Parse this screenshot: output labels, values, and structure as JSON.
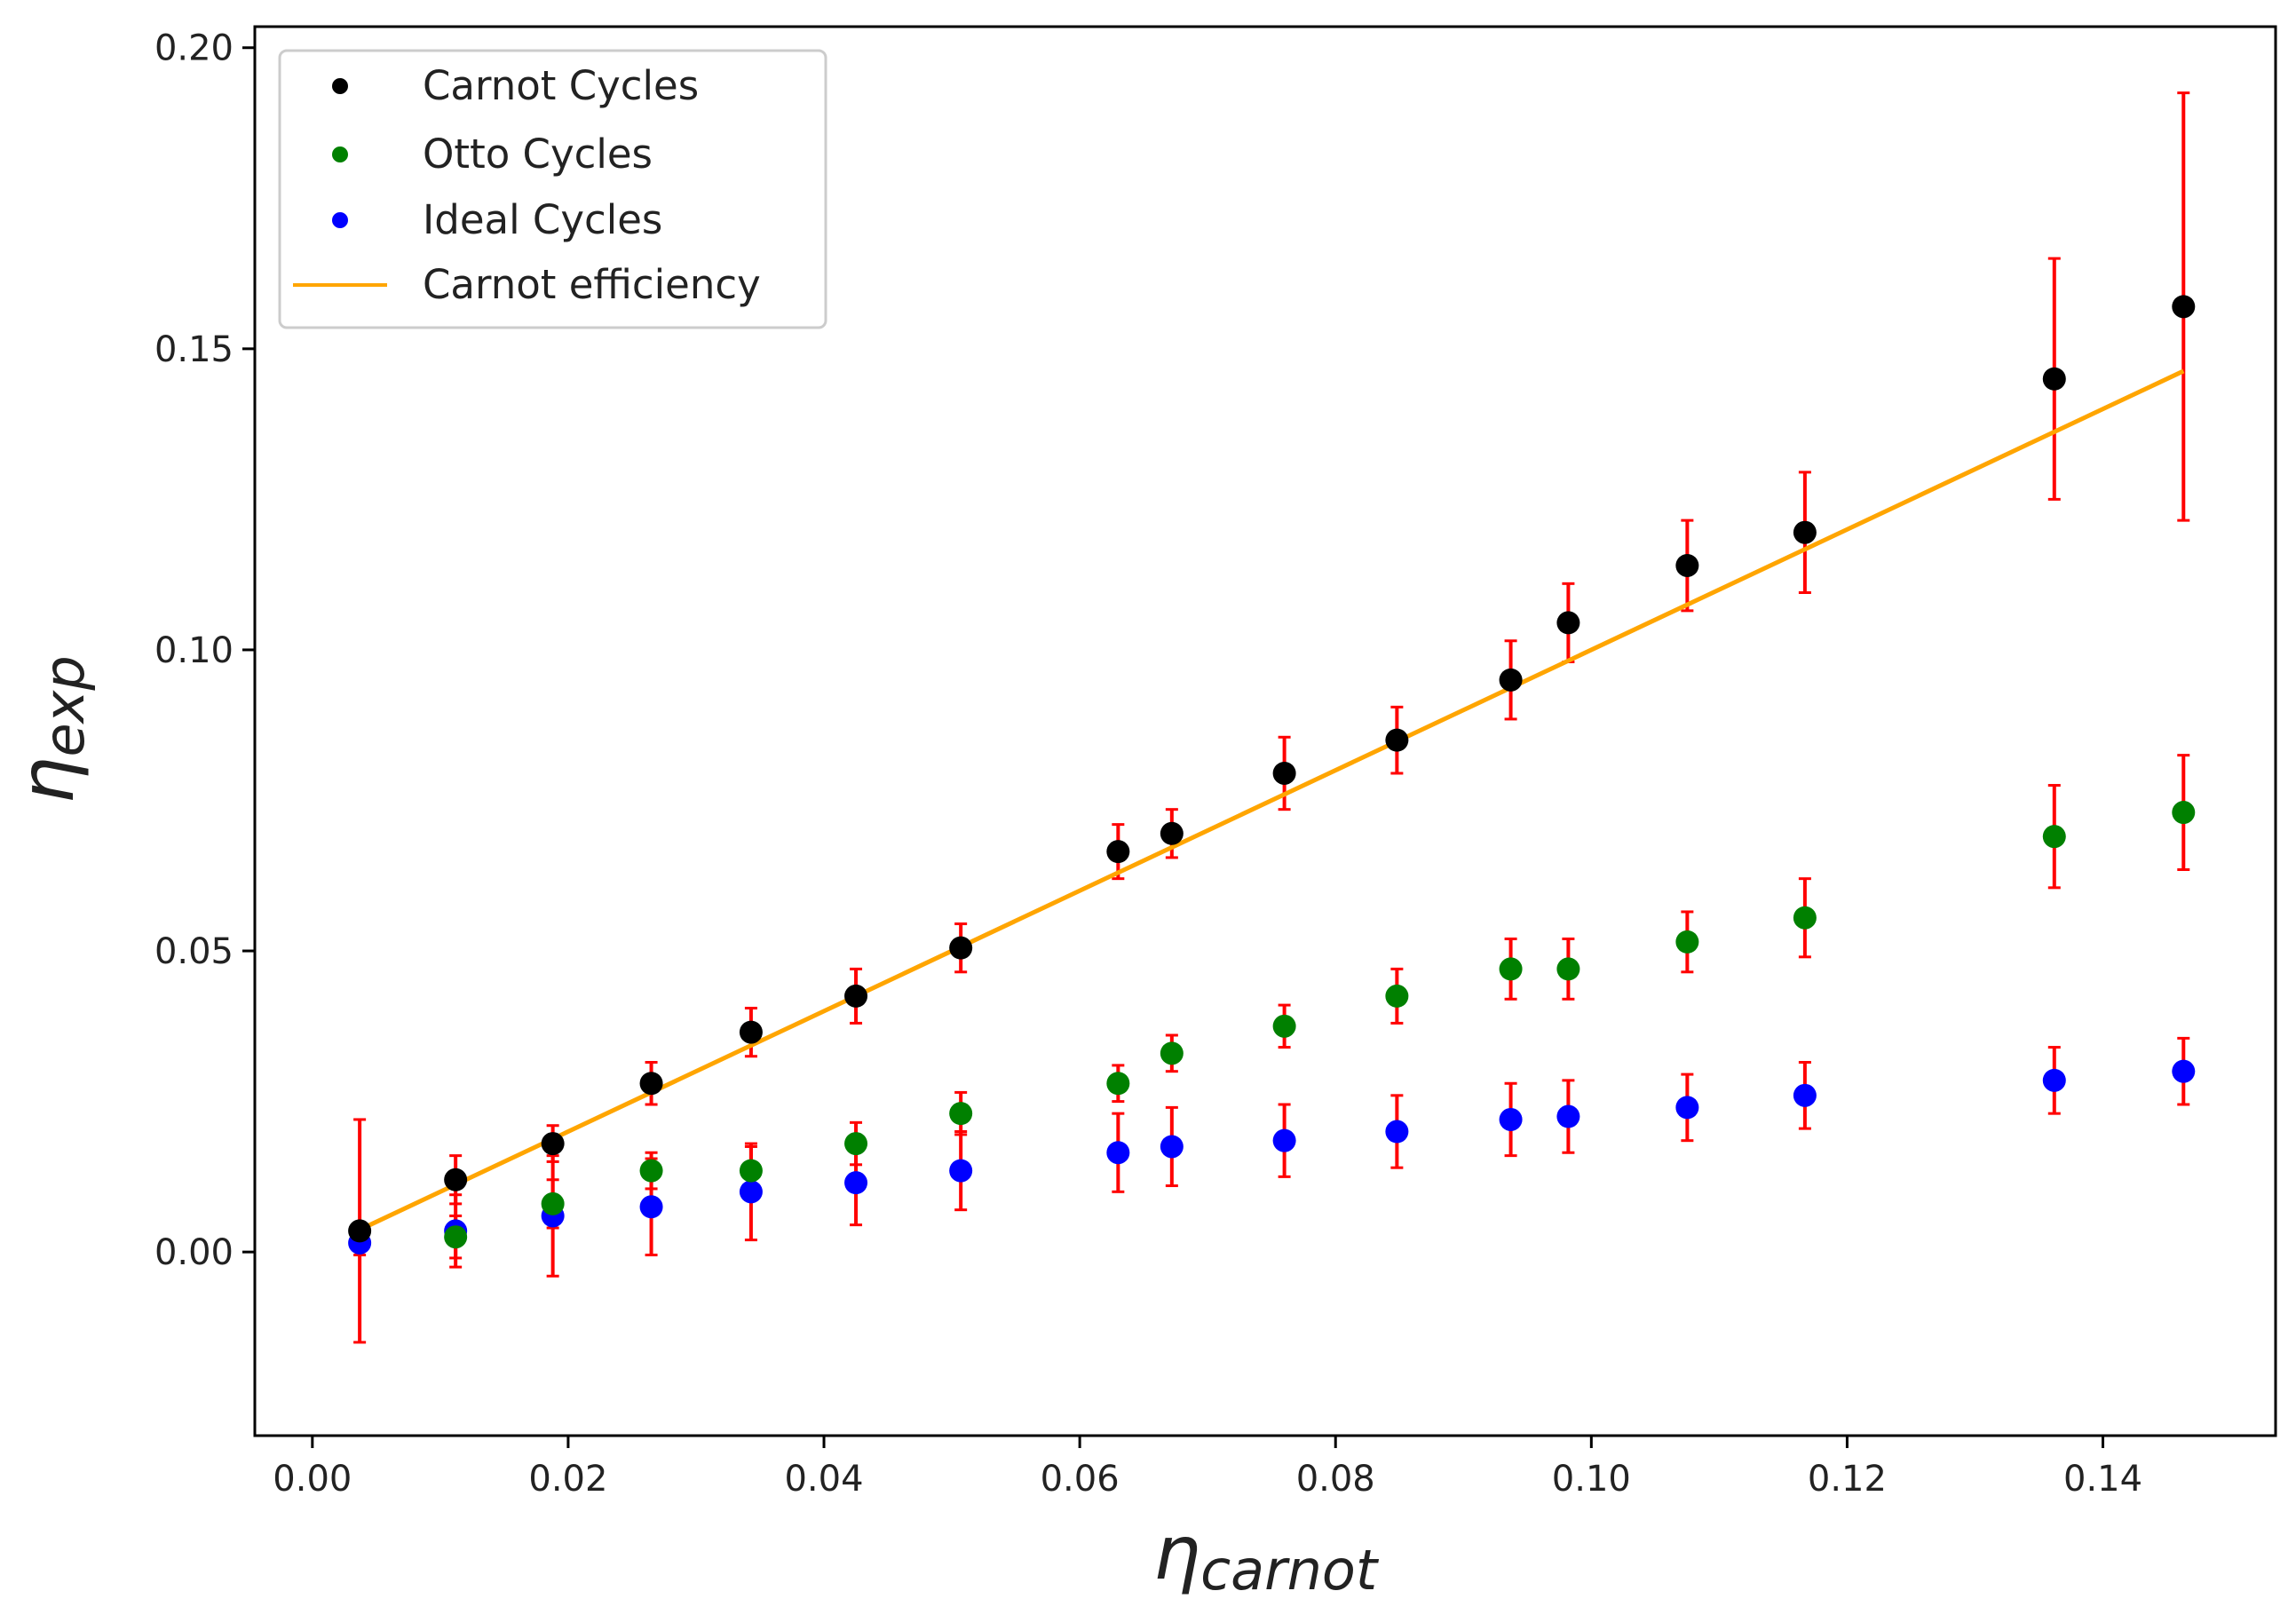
{
  "chart_data": {
    "type": "scatter",
    "title": "",
    "xlabel": {
      "main": "η",
      "sub": "carnot"
    },
    "ylabel": {
      "main": "η",
      "sub": "exp"
    },
    "xlim": [
      -0.0045,
      0.1535
    ],
    "ylim": [
      -0.0305,
      0.2035
    ],
    "x_ticks": [
      0.0,
      0.02,
      0.04,
      0.06,
      0.08,
      0.1,
      0.12,
      0.14
    ],
    "x_tick_labels": [
      "0.00",
      "0.02",
      "0.04",
      "0.06",
      "0.08",
      "0.10",
      "0.12",
      "0.14"
    ],
    "y_ticks": [
      0.0,
      0.05,
      0.1,
      0.15,
      0.2
    ],
    "y_tick_labels": [
      "0.00",
      "0.05",
      "0.10",
      "0.15",
      "0.20"
    ],
    "grid": false,
    "legend_position": "top-left",
    "legend": [
      {
        "label": "Carnot Cycles",
        "kind": "marker",
        "color": "#000000"
      },
      {
        "label": "Otto Cycles",
        "kind": "marker",
        "color": "#008000"
      },
      {
        "label": "Ideal Cycles",
        "kind": "marker",
        "color": "#0000ff"
      },
      {
        "label": "Carnot efficiency",
        "kind": "line",
        "color": "#ffa500"
      }
    ],
    "errorbar_color": "#ff0000",
    "line": {
      "name": "Carnot efficiency",
      "color": "#ffa500",
      "x": [
        0.0037,
        0.1463
      ],
      "y": [
        0.0037,
        0.1463
      ]
    },
    "series": [
      {
        "name": "Carnot Cycles",
        "color": "#000000",
        "x": [
          0.0037,
          0.0112,
          0.0188,
          0.0265,
          0.0343,
          0.0425,
          0.0507,
          0.063,
          0.0672,
          0.076,
          0.0848,
          0.0937,
          0.0982,
          0.1075,
          0.1167,
          0.1362,
          0.1463
        ],
        "y": [
          0.0035,
          0.012,
          0.018,
          0.028,
          0.0365,
          0.0425,
          0.0505,
          0.0665,
          0.0695,
          0.0795,
          0.085,
          0.095,
          0.1045,
          0.114,
          0.1195,
          0.145,
          0.157
        ],
        "err": [
          0.0185,
          0.004,
          0.003,
          0.0035,
          0.004,
          0.0045,
          0.004,
          0.0045,
          0.004,
          0.006,
          0.0055,
          0.0065,
          0.0065,
          0.0075,
          0.01,
          0.02,
          0.0355
        ]
      },
      {
        "name": "Otto Cycles",
        "color": "#008000",
        "x": [
          0.0112,
          0.0188,
          0.0265,
          0.0343,
          0.0425,
          0.0507,
          0.063,
          0.0672,
          0.076,
          0.0848,
          0.0937,
          0.0982,
          0.1075,
          0.1167,
          0.1362,
          0.1463
        ],
        "y": [
          0.0025,
          0.008,
          0.0135,
          0.0135,
          0.018,
          0.023,
          0.028,
          0.033,
          0.0375,
          0.0425,
          0.047,
          0.047,
          0.0515,
          0.0555,
          0.069,
          0.073
        ],
        "err": [
          0.0035,
          0.004,
          0.003,
          0.004,
          0.0035,
          0.0035,
          0.003,
          0.003,
          0.0035,
          0.0045,
          0.005,
          0.005,
          0.005,
          0.0065,
          0.0085,
          0.0095
        ]
      },
      {
        "name": "Ideal Cycles",
        "color": "#0000ff",
        "x": [
          0.0037,
          0.0112,
          0.0188,
          0.0265,
          0.0343,
          0.0425,
          0.0507,
          0.063,
          0.0672,
          0.076,
          0.0848,
          0.0937,
          0.0982,
          0.1075,
          0.1167,
          0.1362,
          0.1463
        ],
        "y": [
          0.0015,
          0.0035,
          0.006,
          0.0075,
          0.01,
          0.0115,
          0.0135,
          0.0165,
          0.0175,
          0.0185,
          0.02,
          0.022,
          0.0225,
          0.024,
          0.026,
          0.0285,
          0.03
        ],
        "err": [
          0.002,
          0.006,
          0.01,
          0.008,
          0.008,
          0.007,
          0.0065,
          0.0065,
          0.0065,
          0.006,
          0.006,
          0.006,
          0.006,
          0.0055,
          0.0055,
          0.0055,
          0.0055
        ]
      }
    ]
  }
}
